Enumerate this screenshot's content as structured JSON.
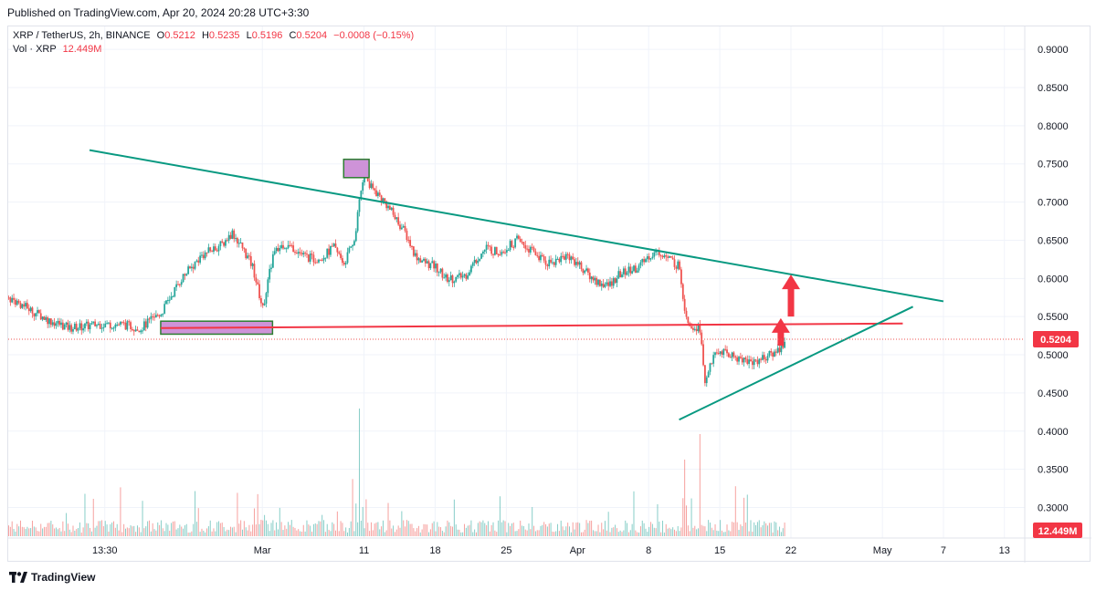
{
  "published": "Published on TradingView.com, Apr 20, 2024 20:28 UTC+3:30",
  "legend": {
    "symbol": "XRP / TetherUS, 2h, BINANCE",
    "open_label": "O",
    "open": "0.5212",
    "high_label": "H",
    "high": "0.5235",
    "low_label": "L",
    "low": "0.5196",
    "close_label": "C",
    "close": "0.5204",
    "change": "−0.0008 (−0.15%)",
    "vol_label": "Vol · XRP",
    "vol_value": "12.449M"
  },
  "footer": {
    "brand": "TradingView"
  },
  "colors": {
    "up": "#26a69a",
    "down": "#ef5350",
    "trendline": "#089981",
    "support": "#f23645",
    "zone_fill": "#ce93d8",
    "zone_border": "#2e7d32",
    "arrow": "#f23645",
    "grid": "#f0f3fa"
  },
  "chart_data": {
    "type": "candlestick",
    "title": "XRP / TetherUS, 2h, BINANCE",
    "y_axis": {
      "ticks": [
        "0.9000",
        "0.8500",
        "0.8000",
        "0.7500",
        "0.7000",
        "0.6500",
        "0.6000",
        "0.5500",
        "0.5000",
        "0.4500",
        "0.4000",
        "0.3500",
        "0.3000"
      ],
      "range": [
        0.26,
        0.93
      ],
      "position": "right",
      "last_price": "0.5204",
      "volume_tag": "12.449M"
    },
    "x_axis": {
      "ticks": [
        {
          "label": "13:30",
          "day": 13.5
        },
        {
          "label": "Mar",
          "day": 29
        },
        {
          "label": "11",
          "day": 39
        },
        {
          "label": "18",
          "day": 46
        },
        {
          "label": "25",
          "day": 53
        },
        {
          "label": "Apr",
          "day": 60
        },
        {
          "label": "8",
          "day": 67
        },
        {
          "label": "15",
          "day": 74
        },
        {
          "label": "22",
          "day": 81
        },
        {
          "label": "May",
          "day": 90
        },
        {
          "label": "7",
          "day": 96
        },
        {
          "label": "13",
          "day": 102
        }
      ],
      "range_days": [
        4,
        104
      ],
      "unit": "days since Feb 1, 2024"
    },
    "price_path": [
      [
        4,
        0.575
      ],
      [
        6,
        0.56
      ],
      [
        8,
        0.545
      ],
      [
        10,
        0.535
      ],
      [
        13,
        0.54
      ],
      [
        15,
        0.54
      ],
      [
        17,
        0.535
      ],
      [
        19,
        0.555
      ],
      [
        21,
        0.6
      ],
      [
        23,
        0.63
      ],
      [
        25,
        0.645
      ],
      [
        26,
        0.66
      ],
      [
        27,
        0.64
      ],
      [
        28,
        0.615
      ],
      [
        29,
        0.56
      ],
      [
        30,
        0.63
      ],
      [
        31,
        0.645
      ],
      [
        32,
        0.64
      ],
      [
        33,
        0.63
      ],
      [
        34,
        0.625
      ],
      [
        35,
        0.63
      ],
      [
        36,
        0.64
      ],
      [
        37,
        0.62
      ],
      [
        38,
        0.65
      ],
      [
        38.5,
        0.7
      ],
      [
        39,
        0.745
      ],
      [
        39.5,
        0.72
      ],
      [
        40,
        0.715
      ],
      [
        41,
        0.7
      ],
      [
        42,
        0.68
      ],
      [
        43,
        0.66
      ],
      [
        44,
        0.63
      ],
      [
        45,
        0.62
      ],
      [
        46,
        0.615
      ],
      [
        47,
        0.6
      ],
      [
        48,
        0.6
      ],
      [
        49,
        0.605
      ],
      [
        50,
        0.625
      ],
      [
        51,
        0.64
      ],
      [
        52,
        0.635
      ],
      [
        53,
        0.64
      ],
      [
        54,
        0.65
      ],
      [
        55,
        0.64
      ],
      [
        56,
        0.63
      ],
      [
        57,
        0.62
      ],
      [
        58,
        0.625
      ],
      [
        59,
        0.63
      ],
      [
        60,
        0.62
      ],
      [
        61,
        0.605
      ],
      [
        62,
        0.595
      ],
      [
        63,
        0.59
      ],
      [
        64,
        0.605
      ],
      [
        65,
        0.61
      ],
      [
        66,
        0.615
      ],
      [
        67,
        0.63
      ],
      [
        68,
        0.635
      ],
      [
        69,
        0.625
      ],
      [
        70,
        0.615
      ],
      [
        70.5,
        0.56
      ],
      [
        71,
        0.54
      ],
      [
        72,
        0.535
      ],
      [
        72.5,
        0.46
      ],
      [
        73,
        0.49
      ],
      [
        74,
        0.505
      ],
      [
        75,
        0.5
      ],
      [
        76,
        0.495
      ],
      [
        77,
        0.49
      ],
      [
        78,
        0.495
      ],
      [
        79,
        0.5
      ],
      [
        80,
        0.51
      ],
      [
        80.5,
        0.52
      ]
    ],
    "volume": {
      "max_label": "12.449M",
      "spikes": [
        [
          28.5,
          0.45
        ],
        [
          38.5,
          1.0
        ],
        [
          70.5,
          0.6
        ],
        [
          72,
          0.8
        ]
      ]
    },
    "annotations": {
      "descending_trendline": [
        [
          12,
          0.768
        ],
        [
          96,
          0.57
        ]
      ],
      "ascending_trendline": [
        [
          70,
          0.415
        ],
        [
          93,
          0.563
        ]
      ],
      "horizontal_support": [
        [
          19,
          0.535
        ],
        [
          92,
          0.541
        ]
      ],
      "zones": [
        {
          "day0": 37,
          "day1": 39.5,
          "p0": 0.732,
          "p1": 0.756
        },
        {
          "day0": 19,
          "day1": 30,
          "p0": 0.527,
          "p1": 0.544
        }
      ],
      "arrows": [
        {
          "day": 81,
          "from": 0.55,
          "to": 0.605
        },
        {
          "day": 80,
          "from": 0.512,
          "to": 0.548
        }
      ]
    }
  }
}
